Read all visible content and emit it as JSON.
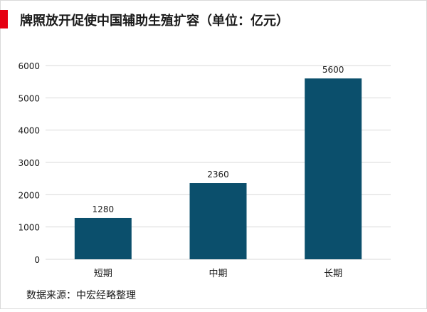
{
  "title": "牌照放开促使中国辅助生殖扩容（单位：亿元）",
  "source": "数据来源：中宏经略整理",
  "colors": {
    "accent": "#e60012",
    "bar": "#0b4f6c",
    "grid": "#d9d9d9",
    "axis_text": "#1a1a1a"
  },
  "chart_data": {
    "type": "bar",
    "categories": [
      "短期",
      "中期",
      "长期"
    ],
    "values": [
      1280,
      2360,
      5600
    ],
    "value_labels": [
      "1280",
      "2360",
      "5600"
    ],
    "yticks": [
      0,
      1000,
      2000,
      3000,
      4000,
      5000,
      6000
    ],
    "ylim": [
      0,
      6000
    ],
    "grid": true,
    "legend": "none",
    "xlabel": "",
    "ylabel": ""
  }
}
